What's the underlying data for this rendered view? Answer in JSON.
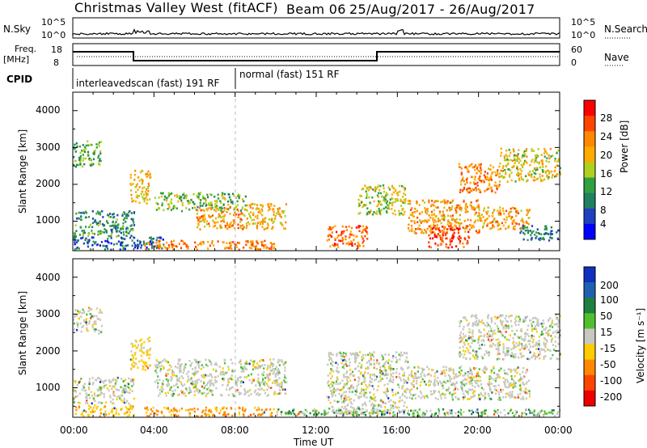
{
  "header": {
    "radar": "Christmas Valley West (fitACF)",
    "beam": "Beam 06",
    "date_range": "25/Aug/2017 - 26/Aug/2017"
  },
  "top_panels": {
    "nsky_label": "N.Sky",
    "nsky_ticks": [
      "10^5",
      "10^0"
    ],
    "nsearch_label": "N.Search",
    "nsearch_ticks": [
      "10^5",
      "10^0"
    ],
    "freq_label_1": "Freq.",
    "freq_label_2": "[MHz]",
    "freq_ticks": [
      "18",
      "8"
    ],
    "nave_label": "Nave",
    "nave_ticks": [
      "60",
      "0"
    ],
    "cpid_label": "CPID",
    "cpid_segments": [
      "interleavedscan (fast) 191 RF",
      "normal (fast) 151 RF"
    ]
  },
  "axes": {
    "ylabel": "Slant Range [km]",
    "yticks": [
      "4000",
      "3000",
      "2000",
      "1000"
    ],
    "xticks": [
      "00:00",
      "04:00",
      "08:00",
      "12:00",
      "16:00",
      "20:00",
      "00:00"
    ],
    "xlabel": "Time UT"
  },
  "power_colorbar": {
    "label": "Power [dB]",
    "ticks": [
      "28",
      "24",
      "20",
      "16",
      "12",
      "8",
      "4"
    ],
    "colors": [
      "#ff0000",
      "#ff4400",
      "#ff8800",
      "#ffaa00",
      "#b0d020",
      "#30a040",
      "#208060",
      "#2040c0",
      "#0000ff"
    ]
  },
  "velocity_colorbar": {
    "label": "Velocity [m s⁻¹]",
    "ticks": [
      "200",
      "100",
      "50",
      "15",
      "-15",
      "-50",
      "-100",
      "-200"
    ],
    "colors": [
      "#1030c0",
      "#2060b0",
      "#208040",
      "#50c030",
      "#c8c8c0",
      "#ffcc00",
      "#ff8800",
      "#ff4400",
      "#ee0000"
    ]
  },
  "chart_data": [
    {
      "type": "heatmap",
      "title": "Christmas Valley West (fitACF) Beam 06 25/Aug/2017 - 26/Aug/2017",
      "xlabel": "Time UT",
      "ylabel": "Slant Range [km]",
      "zlabel": "Power [dB]",
      "x_range_hours": [
        0,
        24
      ],
      "y_range_km": [
        200,
        4500
      ],
      "z_range": [
        0,
        32
      ],
      "regions": [
        {
          "t0": 0.0,
          "t1": 1.4,
          "r0": 2500,
          "r1": 3200,
          "z": 12
        },
        {
          "t0": 0.0,
          "t1": 3.0,
          "r0": 600,
          "r1": 1300,
          "z": 10
        },
        {
          "t0": 0.0,
          "t1": 4.5,
          "r0": 250,
          "r1": 600,
          "z": 6
        },
        {
          "t0": 2.8,
          "t1": 3.8,
          "r0": 1500,
          "r1": 2400,
          "z": 20
        },
        {
          "t0": 3.5,
          "t1": 10.0,
          "r0": 250,
          "r1": 500,
          "z": 24
        },
        {
          "t0": 4.0,
          "t1": 8.5,
          "r0": 1300,
          "r1": 1800,
          "z": 14
        },
        {
          "t0": 6.0,
          "t1": 8.5,
          "r0": 800,
          "r1": 1400,
          "z": 22
        },
        {
          "t0": 8.5,
          "t1": 10.5,
          "r0": 800,
          "r1": 1500,
          "z": 20
        },
        {
          "t0": 12.5,
          "t1": 14.5,
          "r0": 300,
          "r1": 900,
          "z": 26
        },
        {
          "t0": 14.0,
          "t1": 16.5,
          "r0": 1200,
          "r1": 2000,
          "z": 16
        },
        {
          "t0": 16.5,
          "t1": 20.0,
          "r0": 700,
          "r1": 1600,
          "z": 22
        },
        {
          "t0": 17.5,
          "t1": 19.5,
          "r0": 300,
          "r1": 900,
          "z": 28
        },
        {
          "t0": 19.0,
          "t1": 21.0,
          "r0": 1800,
          "r1": 2600,
          "z": 24
        },
        {
          "t0": 20.0,
          "t1": 22.5,
          "r0": 800,
          "r1": 1400,
          "z": 22
        },
        {
          "t0": 21.0,
          "t1": 24.0,
          "r0": 2100,
          "r1": 3000,
          "z": 18
        },
        {
          "t0": 22.0,
          "t1": 24.0,
          "r0": 500,
          "r1": 900,
          "z": 8
        }
      ]
    },
    {
      "type": "heatmap",
      "title": "",
      "xlabel": "Time UT",
      "ylabel": "Slant Range [km]",
      "zlabel": "Velocity [m s⁻¹]",
      "x_range_hours": [
        0,
        24
      ],
      "y_range_km": [
        200,
        4500
      ],
      "z_range": [
        -250,
        250
      ],
      "regions": [
        {
          "t0": 0.0,
          "t1": 1.4,
          "r0": 2500,
          "r1": 3200,
          "z": 0
        },
        {
          "t0": 0.0,
          "t1": 3.0,
          "r0": 600,
          "r1": 1300,
          "z": 0
        },
        {
          "t0": 0.0,
          "t1": 3.0,
          "r0": 250,
          "r1": 550,
          "z": -40
        },
        {
          "t0": 2.8,
          "t1": 3.8,
          "r0": 1500,
          "r1": 2400,
          "z": -20
        },
        {
          "t0": 3.5,
          "t1": 10.0,
          "r0": 250,
          "r1": 500,
          "z": -60
        },
        {
          "t0": 4.0,
          "t1": 10.5,
          "r0": 800,
          "r1": 1800,
          "z": 0
        },
        {
          "t0": 10.0,
          "t1": 15.0,
          "r0": 250,
          "r1": 450,
          "z": 30
        },
        {
          "t0": 12.5,
          "t1": 16.5,
          "r0": 300,
          "r1": 2000,
          "z": 0
        },
        {
          "t0": 16.5,
          "t1": 22.5,
          "r0": 700,
          "r1": 1600,
          "z": 0
        },
        {
          "t0": 19.0,
          "t1": 24.0,
          "r0": 1800,
          "r1": 3000,
          "z": 0
        },
        {
          "t0": 15.0,
          "t1": 24.0,
          "r0": 250,
          "r1": 450,
          "z": 20
        }
      ]
    }
  ]
}
